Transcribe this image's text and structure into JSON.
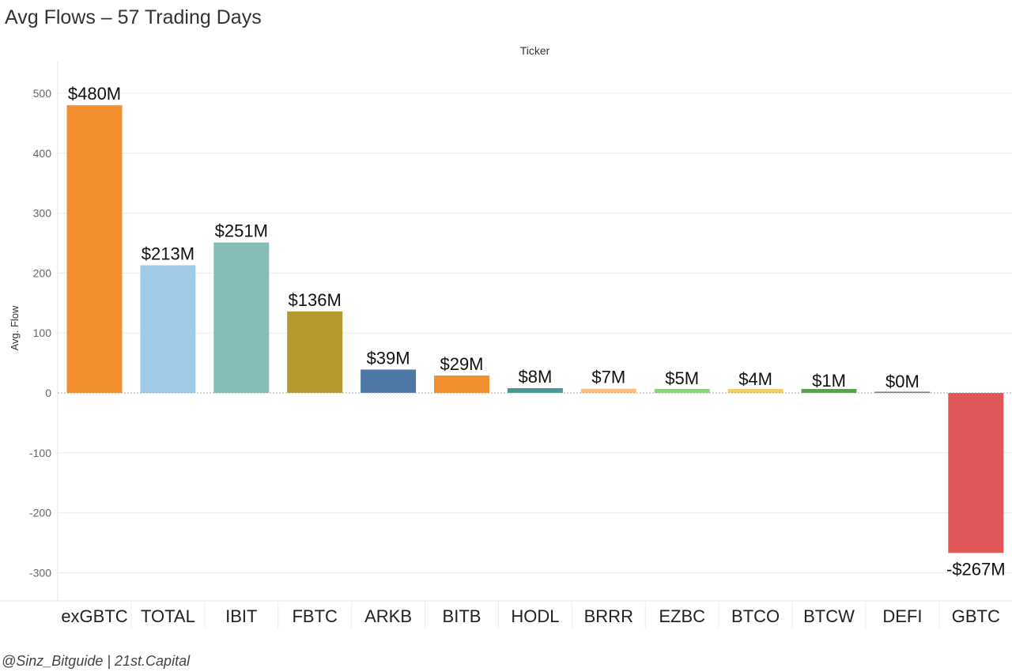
{
  "chart_data": {
    "type": "bar",
    "title": "Avg Flows – 57 Trading Days",
    "column_header": "Ticker",
    "ylabel": "Avg. Flow",
    "ylim": [
      -345,
      555
    ],
    "yticks": [
      500,
      400,
      300,
      200,
      100,
      0,
      -100,
      -200,
      -300
    ],
    "grid": true,
    "categories": [
      "exGBTC",
      "TOTAL",
      "IBIT",
      "FBTC",
      "ARKB",
      "BITB",
      "HODL",
      "BRRR",
      "EZBC",
      "BTCO",
      "BTCW",
      "DEFI",
      "GBTC"
    ],
    "values": [
      480,
      213,
      251,
      136,
      39,
      29,
      8,
      7,
      5,
      4,
      1,
      0,
      -267
    ],
    "data_labels": [
      "$480M",
      "$213M",
      "$251M",
      "$136M",
      "$39M",
      "$29M",
      "$8M",
      "$7M",
      "$5M",
      "$4M",
      "$1M",
      "$0M",
      "-$267M"
    ],
    "colors": [
      "#F28E2B",
      "#A0CBE8",
      "#86BCB6",
      "#B6992D",
      "#4E79A7",
      "#F28E2B",
      "#499894",
      "#FFBE7D",
      "#8CD17D",
      "#F1CE63",
      "#59A14F",
      "#79706E",
      "#E15759"
    ]
  },
  "footer": "@Sinz_Bitguide | 21st.Capital"
}
